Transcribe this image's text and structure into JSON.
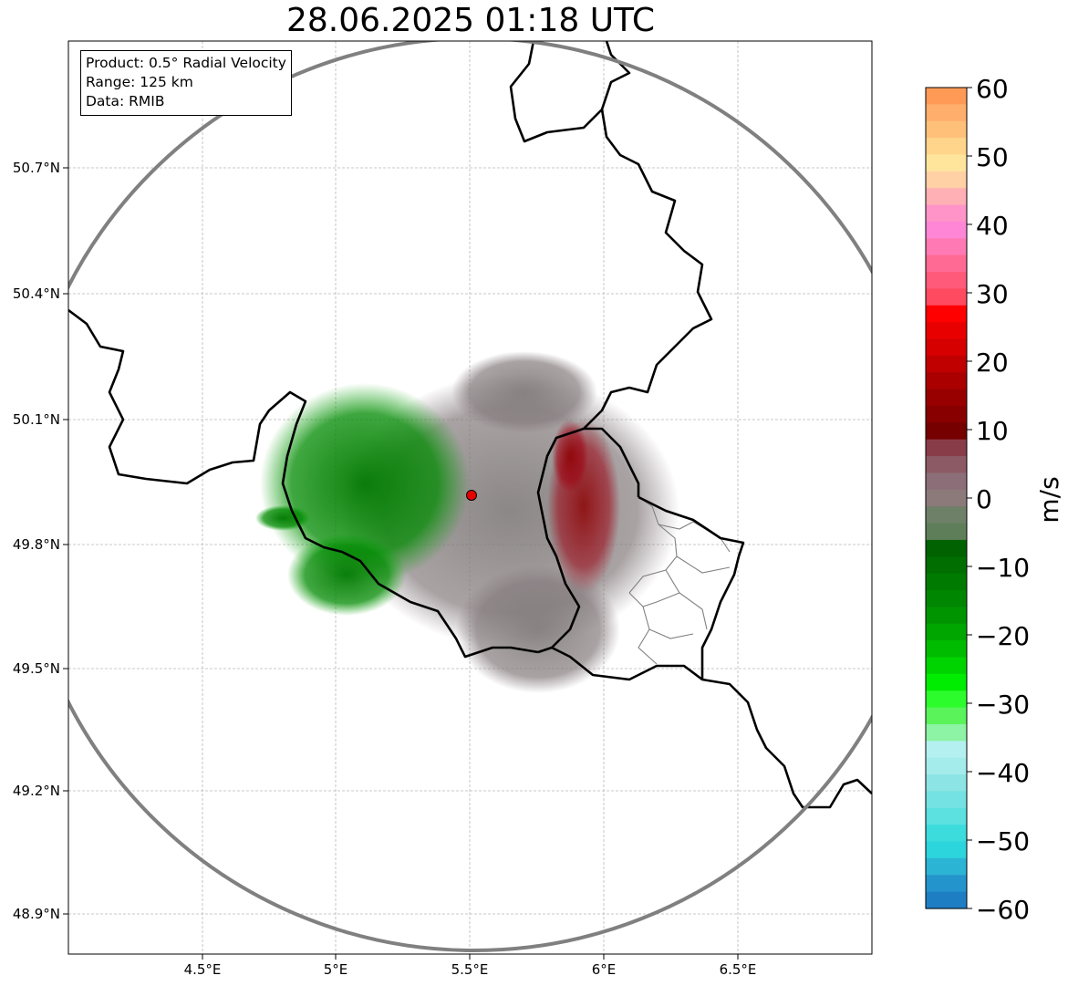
{
  "title": "28.06.2025 01:18 UTC",
  "info_box": {
    "product": "Product: 0.5° Radial Velocity",
    "range": "Range: 125 km",
    "data": "Data: RMIB"
  },
  "map": {
    "lat_ticks": [
      "50.7°N",
      "50.4°N",
      "50.1°N",
      "49.8°N",
      "49.5°N",
      "49.2°N",
      "48.9°N"
    ],
    "lon_ticks": [
      "4.5°E",
      "5°E",
      "5.5°E",
      "6°E",
      "6.5°E"
    ],
    "radar_site": {
      "lat": 49.91,
      "lon": 5.51
    },
    "range_ring_color": "#808080",
    "border_color": "#000000"
  },
  "colorbar": {
    "unit": "m/s",
    "min": -60,
    "max": 60,
    "tick_labels": [
      "60",
      "50",
      "40",
      "30",
      "20",
      "10",
      "0",
      "−10",
      "−20",
      "−30",
      "−40",
      "−50",
      "−60"
    ],
    "colors_top_to_bottom": [
      "#ff9a56",
      "#ffae6c",
      "#ffc07a",
      "#ffd58c",
      "#ffe59c",
      "#ffd1a4",
      "#ffb0b4",
      "#ff94c8",
      "#ff86d6",
      "#ff7ab4",
      "#ff6a94",
      "#ff5a7a",
      "#ff4a60",
      "#ff0000",
      "#e80000",
      "#d60000",
      "#c00000",
      "#aa0000",
      "#980000",
      "#880000",
      "#760000",
      "#883c48",
      "#8c5a64",
      "#8c6e78",
      "#8c7a7a",
      "#6e8068",
      "#5e7e5a",
      "#006200",
      "#006e00",
      "#007a00",
      "#008600",
      "#009400",
      "#00a600",
      "#00bc00",
      "#00d400",
      "#00ec00",
      "#2cfc2c",
      "#5af45a",
      "#8cf4a4",
      "#b4f0f0",
      "#a4ecec",
      "#8ce4e4",
      "#74e2e2",
      "#5ce0e0",
      "#3cdcdc",
      "#2cd4dc",
      "#2cb4d4",
      "#2494cc",
      "#1e7ec4"
    ]
  }
}
